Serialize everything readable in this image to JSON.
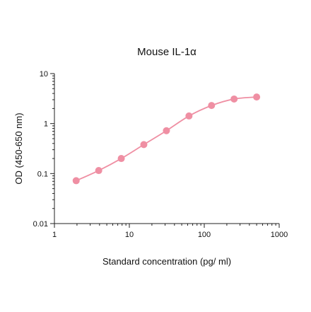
{
  "chart_data": {
    "type": "line",
    "title": "Mouse IL-1α",
    "xlabel": "Standard concentration (pg/ ml)",
    "ylabel": "OD (450-650 nm)",
    "x_scale": "log",
    "y_scale": "log",
    "xlim": [
      1,
      1000
    ],
    "ylim": [
      0.01,
      10
    ],
    "x_ticks": [
      1,
      10,
      100,
      1000
    ],
    "x_tick_labels": [
      "1",
      "10",
      "100",
      "1000"
    ],
    "y_ticks": [
      0.01,
      0.1,
      1,
      10
    ],
    "y_tick_labels": [
      "0.01",
      "0.1",
      "1",
      "10"
    ],
    "grid": false,
    "series": [
      {
        "color": "#ef8fa3",
        "x": [
          1.95,
          3.9,
          7.8,
          15.6,
          31.25,
          62.5,
          125,
          250,
          500
        ],
        "y": [
          0.072,
          0.115,
          0.2,
          0.38,
          0.72,
          1.42,
          2.3,
          3.1,
          3.4
        ]
      }
    ]
  }
}
